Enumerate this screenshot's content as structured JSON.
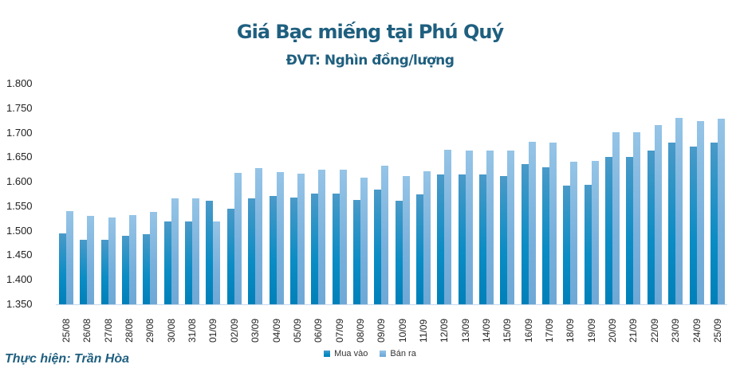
{
  "header": {
    "title": "Giá Bạc miếng tại Phú Quý",
    "subtitle": "ĐVT: Nghìn đồng/lượng"
  },
  "footer": {
    "credit": "Thực hiện: Trần Hòa"
  },
  "legend": {
    "items": [
      {
        "label": "Mua vào",
        "color": "#0a8cc4"
      },
      {
        "label": "Bán ra",
        "color": "#8fc0e4"
      }
    ]
  },
  "y_axis": {
    "ticks": [
      "1.800",
      "1.750",
      "1.700",
      "1.650",
      "1.600",
      "1.550",
      "1.500",
      "1.450",
      "1.400",
      "1.350"
    ]
  },
  "chart_data": {
    "type": "bar",
    "title": "Giá Bạc miếng tại Phú Quý",
    "subtitle": "ĐVT: Nghìn đồng/lượng",
    "xlabel": "",
    "ylabel": "",
    "ylim": [
      1350,
      1800
    ],
    "yticks": [
      1350,
      1400,
      1450,
      1500,
      1550,
      1600,
      1650,
      1700,
      1750,
      1800
    ],
    "grid": false,
    "legend_position": "bottom",
    "categories": [
      "25/08",
      "26/08",
      "27/08",
      "28/08",
      "29/08",
      "30/08",
      "31/08",
      "01/09",
      "02/09",
      "03/09",
      "04/09",
      "05/09",
      "06/09",
      "07/09",
      "08/09",
      "09/09",
      "10/09",
      "11/09",
      "12/09",
      "13/09",
      "14/09",
      "15/09",
      "16/09",
      "17/09",
      "18/09",
      "19/09",
      "20/09",
      "21/09",
      "22/09",
      "23/09",
      "24/09",
      "25/09"
    ],
    "series": [
      {
        "name": "Mua vào",
        "values": [
          1494,
          1481,
          1481,
          1490,
          1493,
          1519,
          1519,
          1561,
          1545,
          1566,
          1571,
          1568,
          1576,
          1576,
          1563,
          1584,
          1561,
          1574,
          1615,
          1615,
          1615,
          1611,
          1636,
          1629,
          1592,
          1594,
          1650,
          1650,
          1663,
          1680,
          1671,
          1680
        ]
      },
      {
        "name": "Bán ra",
        "values": [
          1540,
          1530,
          1527,
          1532,
          1538,
          1566,
          1566,
          1519,
          1618,
          1628,
          1620,
          1616,
          1624,
          1624,
          1608,
          1633,
          1611,
          1622,
          1665,
          1663,
          1663,
          1663,
          1681,
          1680,
          1641,
          1642,
          1701,
          1701,
          1715,
          1730,
          1723,
          1728
        ]
      }
    ]
  }
}
